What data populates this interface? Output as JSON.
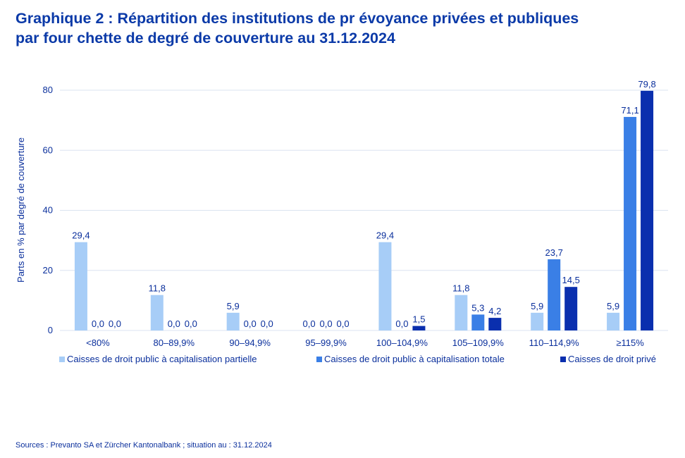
{
  "title_line1": "Graphique 2 : Répartition des institutions de pr évoyance privées et publiques",
  "title_line2": "par four chette de degré de couverture au 31.12.2024",
  "source": "Sources : Prevanto SA et Zürcher Kantonalbank ; situation au : 31.12.2024",
  "chart_data": {
    "type": "bar",
    "title": "Graphique 2 : Répartition des institutions de pr évoyance privées et publiques par four chette de degré de couverture au 31.12.2024",
    "ylabel": "Parts en % par degré de couverture",
    "xlabel": "",
    "ylim": [
      0,
      80
    ],
    "yticks": [
      0,
      20,
      40,
      60,
      80
    ],
    "categories": [
      "<80%",
      "80–89,9%",
      "90–94,9%",
      "95–99,9%",
      "100–104,9%",
      "105–109,9%",
      "110–114,9%",
      "≥115%"
    ],
    "series": [
      {
        "name": "Caisses de droit public à capitalisation partielle",
        "color": "#a7cdf7",
        "values": [
          29.4,
          11.8,
          5.9,
          0.0,
          29.4,
          11.8,
          5.9,
          5.9
        ],
        "labels": [
          "29,4",
          "11,8",
          "5,9",
          "0,0",
          "29,4",
          "11,8",
          "5,9",
          "5,9"
        ]
      },
      {
        "name": "Caisses de droit public à capitalisation totale",
        "color": "#3a7fe6",
        "values": [
          0.0,
          0.0,
          0.0,
          0.0,
          0.0,
          5.3,
          23.7,
          71.1
        ],
        "labels": [
          "0,0",
          "0,0",
          "0,0",
          "0,0",
          "0,0",
          "5,3",
          "23,7",
          "71,1"
        ]
      },
      {
        "name": "Caisses de droit privé",
        "color": "#0a2fae",
        "values": [
          0.0,
          0.0,
          0.0,
          0.0,
          1.5,
          4.2,
          14.5,
          79.8
        ],
        "labels": [
          "0,0",
          "0,0",
          "0,0",
          "0,0",
          "1,5",
          "4,2",
          "14,5",
          "79,8"
        ]
      }
    ],
    "legend_position": "bottom",
    "grid": true
  }
}
